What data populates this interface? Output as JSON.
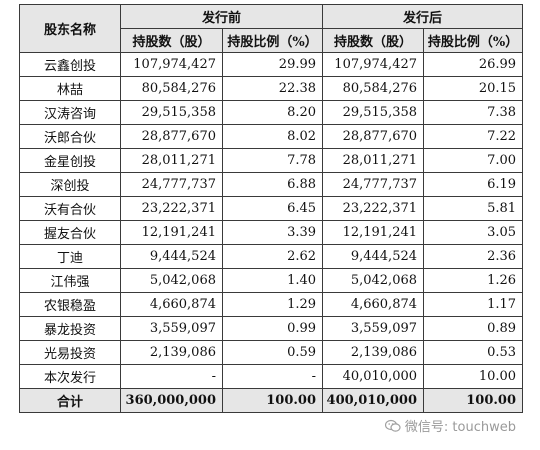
{
  "header": {
    "col_name": "股东名称",
    "group_before": "发行前",
    "group_after": "发行后",
    "shares_label": "持股数（股）",
    "ratio_label": "持股比例（%）"
  },
  "rows": [
    {
      "name": "云鑫创投",
      "shares_before": "107,974,427",
      "ratio_before": "29.99",
      "shares_after": "107,974,427",
      "ratio_after": "26.99"
    },
    {
      "name": "林喆",
      "shares_before": "80,584,276",
      "ratio_before": "22.38",
      "shares_after": "80,584,276",
      "ratio_after": "20.15"
    },
    {
      "name": "汉涛咨询",
      "shares_before": "29,515,358",
      "ratio_before": "8.20",
      "shares_after": "29,515,358",
      "ratio_after": "7.38"
    },
    {
      "name": "沃郎合伙",
      "shares_before": "28,877,670",
      "ratio_before": "8.02",
      "shares_after": "28,877,670",
      "ratio_after": "7.22"
    },
    {
      "name": "金星创投",
      "shares_before": "28,011,271",
      "ratio_before": "7.78",
      "shares_after": "28,011,271",
      "ratio_after": "7.00"
    },
    {
      "name": "深创投",
      "shares_before": "24,777,737",
      "ratio_before": "6.88",
      "shares_after": "24,777,737",
      "ratio_after": "6.19"
    },
    {
      "name": "沃有合伙",
      "shares_before": "23,222,371",
      "ratio_before": "6.45",
      "shares_after": "23,222,371",
      "ratio_after": "5.81"
    },
    {
      "name": "握友合伙",
      "shares_before": "12,191,241",
      "ratio_before": "3.39",
      "shares_after": "12,191,241",
      "ratio_after": "3.05"
    },
    {
      "name": "丁迪",
      "shares_before": "9,444,524",
      "ratio_before": "2.62",
      "shares_after": "9,444,524",
      "ratio_after": "2.36"
    },
    {
      "name": "江伟强",
      "shares_before": "5,042,068",
      "ratio_before": "1.40",
      "shares_after": "5,042,068",
      "ratio_after": "1.26"
    },
    {
      "name": "农银稳盈",
      "shares_before": "4,660,874",
      "ratio_before": "1.29",
      "shares_after": "4,660,874",
      "ratio_after": "1.17"
    },
    {
      "name": "暴龙投资",
      "shares_before": "3,559,097",
      "ratio_before": "0.99",
      "shares_after": "3,559,097",
      "ratio_after": "0.89"
    },
    {
      "name": "光易投资",
      "shares_before": "2,139,086",
      "ratio_before": "0.59",
      "shares_after": "2,139,086",
      "ratio_after": "0.53"
    },
    {
      "name": "本次发行",
      "shares_before": "-",
      "ratio_before": "-",
      "shares_after": "40,010,000",
      "ratio_after": "10.00"
    }
  ],
  "total": {
    "name": "合计",
    "shares_before": "360,000,000",
    "ratio_before": "100.00",
    "shares_after": "400,010,000",
    "ratio_after": "100.00"
  },
  "watermark": {
    "text": "微信号: touchweb",
    "icon": "wechat-icon"
  }
}
